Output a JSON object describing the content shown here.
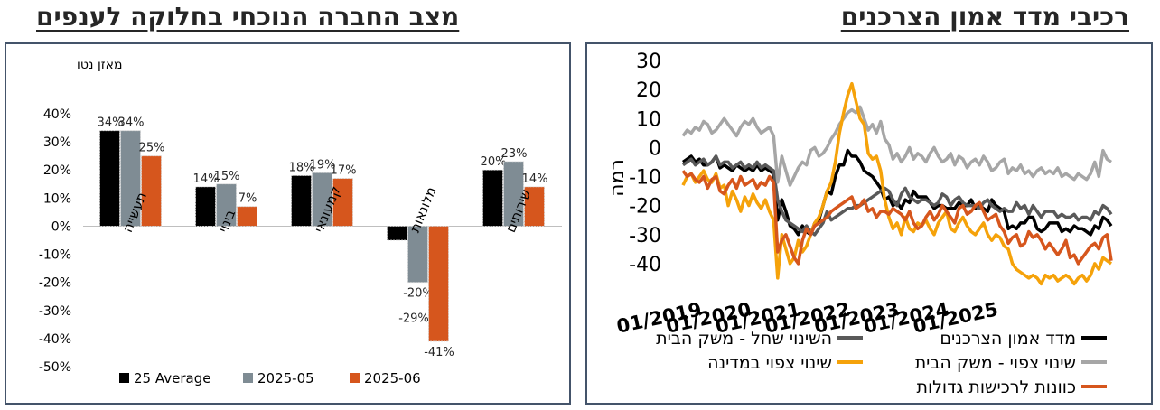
{
  "left_title": "מצב החברה הנוכחי בחלוקה לענפים",
  "right_title": "רכיבי מדד אמון הצרכנים",
  "colors": {
    "frame": "#44546a",
    "black": "#000000",
    "gray": "#7f8c94",
    "orange": "#d6561d",
    "dark_gray": "#595959",
    "light_gray": "#a6a6a6",
    "amber": "#f5a20a"
  },
  "chart_data": [
    {
      "type": "bar",
      "ylabel": "מאזן נטו",
      "ylim": [
        -50,
        40
      ],
      "yticks": [
        "40%",
        "30%",
        "20%",
        "10%",
        "0%",
        "-10%",
        "-20%",
        "-30%",
        "-40%",
        "-50%"
      ],
      "categories": [
        "תעשייה",
        "בינוי",
        "קמעונאי",
        "מלונאות",
        "שירותים"
      ],
      "legend_position": "bottom",
      "series": [
        {
          "name": "25 Average",
          "color": "#000000",
          "values": [
            34,
            14,
            18,
            -5,
            20
          ],
          "labels": [
            "34%",
            "14%",
            "18%",
            "",
            "20%"
          ]
        },
        {
          "name": "2025-05",
          "color": "#7f8c94",
          "values": [
            34,
            15,
            19,
            -20,
            23
          ],
          "labels": [
            "34%",
            "15%",
            "19%",
            "-20%",
            "23%"
          ]
        },
        {
          "name": "2025-06",
          "color": "#d6561d",
          "values": [
            25,
            7,
            17,
            -41,
            14
          ],
          "labels": [
            "25%",
            "7%",
            "17%",
            "-41%",
            "14%"
          ]
        }
      ],
      "extra_labels": [
        "-29%"
      ]
    },
    {
      "type": "line",
      "ylabel": "רמה",
      "ylim": [
        -50,
        30
      ],
      "yticks": [
        "30",
        "20",
        "10",
        "0",
        "-10",
        "-20",
        "-30",
        "-40"
      ],
      "xticks": [
        "01/2019",
        "01/2020",
        "01/2021",
        "01/2022",
        "01/2023",
        "01/2024",
        "01/2025"
      ],
      "x_start": "2018-10",
      "legend_position": "bottom",
      "series": [
        {
          "name": "מדד אמון הצרכנים",
          "color": "#000000",
          "values": [
            -5,
            -4,
            -3,
            -5,
            -4,
            -6,
            -6,
            -5,
            -3,
            -7,
            -6,
            -7,
            -8,
            -6,
            -7,
            -8,
            -7,
            -8,
            -6,
            -8,
            -7,
            -8,
            -9,
            -25,
            -18,
            -22,
            -27,
            -28,
            -30,
            -27,
            -29,
            -30,
            -26,
            -25,
            -20,
            -15,
            -16,
            -10,
            -6,
            -6,
            -1,
            -3,
            -3,
            -5,
            -8,
            -9,
            -10,
            -12,
            -14,
            -18,
            -17,
            -20,
            -19,
            -21,
            -18,
            -19,
            -15,
            -17,
            -17,
            -17,
            -19,
            -21,
            -20,
            -20,
            -21,
            -21,
            -21,
            -19,
            -20,
            -20,
            -18,
            -21,
            -20,
            -21,
            -22,
            -18,
            -20,
            -21,
            -22,
            -28,
            -27,
            -28,
            -26,
            -26,
            -24,
            -24,
            -28,
            -29,
            -28,
            -26,
            -26,
            -26,
            -29,
            -28,
            -29,
            -27,
            -28,
            -28,
            -29,
            -30,
            -27,
            -28,
            -24,
            -25,
            -27
          ]
        },
        {
          "name": "השינוי שחל - משק הבית",
          "color": "#595959",
          "values": [
            -6,
            -5,
            -4,
            -6,
            -5,
            -4,
            -6,
            -5,
            -3,
            -6,
            -5,
            -5,
            -7,
            -6,
            -5,
            -7,
            -6,
            -7,
            -5,
            -7,
            -6,
            -7,
            -8,
            -18,
            -22,
            -25,
            -26,
            -27,
            -28,
            -29,
            -27,
            -29,
            -30,
            -28,
            -26,
            -22,
            -25,
            -24,
            -23,
            -22,
            -21,
            -21,
            -20,
            -20,
            -19,
            -18,
            -17,
            -16,
            -15,
            -14,
            -15,
            -18,
            -20,
            -16,
            -14,
            -17,
            -18,
            -19,
            -18,
            -18,
            -19,
            -20,
            -19,
            -16,
            -17,
            -20,
            -18,
            -17,
            -19,
            -20,
            -20,
            -20,
            -21,
            -19,
            -18,
            -20,
            -21,
            -22,
            -21,
            -22,
            -22,
            -19,
            -21,
            -20,
            -23,
            -20,
            -22,
            -24,
            -22,
            -22,
            -22,
            -24,
            -23,
            -24,
            -24,
            -23,
            -25,
            -24,
            -24,
            -25,
            -22,
            -23,
            -20,
            -21,
            -23
          ]
        },
        {
          "name": "שינוי צפוי - משק הבית",
          "color": "#a6a6a6",
          "values": [
            4,
            6,
            5,
            7,
            6,
            9,
            8,
            5,
            6,
            8,
            10,
            8,
            6,
            4,
            7,
            9,
            8,
            10,
            7,
            5,
            6,
            7,
            4,
            -12,
            -3,
            -8,
            -13,
            -10,
            -7,
            -5,
            -6,
            -1,
            0,
            -3,
            -2,
            0,
            3,
            5,
            8,
            10,
            12,
            13,
            12,
            14,
            10,
            6,
            8,
            5,
            9,
            3,
            1,
            -4,
            -2,
            -5,
            -3,
            0,
            -4,
            -2,
            -3,
            -5,
            -2,
            0,
            -3,
            -5,
            -4,
            -2,
            -6,
            -3,
            -4,
            -7,
            -5,
            -4,
            -6,
            -3,
            -5,
            -8,
            -7,
            -5,
            -4,
            -9,
            -7,
            -8,
            -6,
            -9,
            -8,
            -10,
            -8,
            -7,
            -9,
            -8,
            -9,
            -7,
            -10,
            -9,
            -10,
            -11,
            -9,
            -10,
            -11,
            -9,
            -5,
            -10,
            -1,
            -4,
            -5
          ]
        },
        {
          "name": "שינוי צפוי במדינה",
          "color": "#f5a20a",
          "values": [
            -13,
            -10,
            -9,
            -12,
            -10,
            -8,
            -11,
            -12,
            -9,
            -14,
            -13,
            -20,
            -15,
            -18,
            -22,
            -17,
            -20,
            -16,
            -19,
            -21,
            -18,
            -22,
            -25,
            -45,
            -30,
            -35,
            -40,
            -38,
            -32,
            -36,
            -34,
            -30,
            -26,
            -24,
            -20,
            -15,
            -12,
            -5,
            5,
            12,
            18,
            22,
            16,
            10,
            8,
            -2,
            -4,
            -3,
            -8,
            -18,
            -24,
            -28,
            -26,
            -30,
            -24,
            -28,
            -29,
            -26,
            -27,
            -25,
            -28,
            -30,
            -26,
            -24,
            -22,
            -28,
            -29,
            -26,
            -24,
            -27,
            -29,
            -30,
            -28,
            -26,
            -30,
            -32,
            -30,
            -31,
            -34,
            -35,
            -40,
            -42,
            -43,
            -44,
            -45,
            -44,
            -45,
            -47,
            -44,
            -45,
            -44,
            -46,
            -45,
            -44,
            -45,
            -47,
            -45,
            -44,
            -46,
            -44,
            -40,
            -42,
            -38,
            -39,
            -40
          ]
        },
        {
          "name": "כוונות לרכישות גדולות",
          "color": "#d6561d",
          "values": [
            -8,
            -10,
            -9,
            -11,
            -12,
            -10,
            -14,
            -11,
            -10,
            -15,
            -16,
            -13,
            -11,
            -14,
            -10,
            -13,
            -12,
            -11,
            -14,
            -12,
            -13,
            -10,
            -12,
            -36,
            -32,
            -30,
            -34,
            -38,
            -40,
            -32,
            -28,
            -30,
            -27,
            -26,
            -25,
            -24,
            -22,
            -21,
            -20,
            -19,
            -18,
            -17,
            -21,
            -20,
            -18,
            -22,
            -21,
            -24,
            -22,
            -22,
            -23,
            -21,
            -22,
            -23,
            -25,
            -22,
            -26,
            -28,
            -27,
            -24,
            -22,
            -25,
            -23,
            -20,
            -22,
            -24,
            -26,
            -21,
            -20,
            -23,
            -22,
            -20,
            -19,
            -22,
            -25,
            -24,
            -23,
            -27,
            -29,
            -33,
            -31,
            -30,
            -34,
            -33,
            -29,
            -31,
            -30,
            -32,
            -35,
            -33,
            -35,
            -37,
            -35,
            -32,
            -38,
            -37,
            -40,
            -38,
            -36,
            -34,
            -33,
            -35,
            -31,
            -30,
            -39
          ]
        }
      ]
    }
  ]
}
